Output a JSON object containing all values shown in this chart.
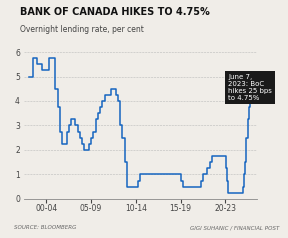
{
  "title": "BANK OF CANADA HIKES TO 4.75%",
  "subtitle": "Overnight lending rate, per cent",
  "source_left": "SOURCE: BLOOMBERG",
  "source_right": "GIGI SUHANIC / FINANCIAL POST",
  "line_color": "#1565c0",
  "background_color": "#f0ede8",
  "annotation_bg": "#1a1a1a",
  "annotation_text": "June 7,\n2023: BoC\nhikes 25 bps\nto 4.75%",
  "ylim": [
    0,
    6.2
  ],
  "yticks": [
    0,
    1,
    2,
    3,
    4,
    5,
    6
  ],
  "xtick_labels": [
    "00-04",
    "05-09",
    "10-14",
    "15-19",
    "20-23"
  ],
  "xtick_positions": [
    2,
    7,
    12,
    17,
    22
  ],
  "series": [
    [
      1998,
      5.0
    ],
    [
      1998.5,
      5.75
    ],
    [
      1999,
      5.5
    ],
    [
      1999.5,
      5.25
    ],
    [
      2000,
      5.25
    ],
    [
      2000.25,
      5.75
    ],
    [
      2000.5,
      5.75
    ],
    [
      2001,
      4.5
    ],
    [
      2001.25,
      3.75
    ],
    [
      2001.5,
      2.75
    ],
    [
      2001.75,
      2.25
    ],
    [
      2002,
      2.25
    ],
    [
      2002.25,
      2.75
    ],
    [
      2002.5,
      3.0
    ],
    [
      2002.75,
      3.25
    ],
    [
      2003,
      3.25
    ],
    [
      2003.25,
      3.0
    ],
    [
      2003.5,
      2.75
    ],
    [
      2003.75,
      2.5
    ],
    [
      2004,
      2.25
    ],
    [
      2004.25,
      2.0
    ],
    [
      2004.5,
      2.0
    ],
    [
      2004.75,
      2.25
    ],
    [
      2005,
      2.5
    ],
    [
      2005.25,
      2.75
    ],
    [
      2005.5,
      3.25
    ],
    [
      2005.75,
      3.5
    ],
    [
      2006,
      3.75
    ],
    [
      2006.25,
      4.0
    ],
    [
      2006.5,
      4.25
    ],
    [
      2006.75,
      4.25
    ],
    [
      2007,
      4.25
    ],
    [
      2007.25,
      4.5
    ],
    [
      2007.5,
      4.5
    ],
    [
      2007.75,
      4.25
    ],
    [
      2008,
      4.0
    ],
    [
      2008.25,
      3.0
    ],
    [
      2008.5,
      2.5
    ],
    [
      2008.75,
      1.5
    ],
    [
      2009,
      0.5
    ],
    [
      2009.5,
      0.5
    ],
    [
      2010,
      0.5
    ],
    [
      2010.25,
      0.75
    ],
    [
      2010.5,
      1.0
    ],
    [
      2011,
      1.0
    ],
    [
      2012,
      1.0
    ],
    [
      2013,
      1.0
    ],
    [
      2014,
      1.0
    ],
    [
      2014.75,
      1.0
    ],
    [
      2015,
      0.75
    ],
    [
      2015.25,
      0.5
    ],
    [
      2016,
      0.5
    ],
    [
      2017,
      0.5
    ],
    [
      2017.25,
      0.75
    ],
    [
      2017.5,
      1.0
    ],
    [
      2018,
      1.25
    ],
    [
      2018.25,
      1.5
    ],
    [
      2018.5,
      1.75
    ],
    [
      2019,
      1.75
    ],
    [
      2020,
      1.75
    ],
    [
      2020.08,
      1.25
    ],
    [
      2020.16,
      0.75
    ],
    [
      2020.25,
      0.25
    ],
    [
      2021,
      0.25
    ],
    [
      2021.75,
      0.25
    ],
    [
      2022,
      0.5
    ],
    [
      2022.08,
      1.0
    ],
    [
      2022.17,
      1.5
    ],
    [
      2022.33,
      2.5
    ],
    [
      2022.5,
      3.25
    ],
    [
      2022.6,
      3.75
    ],
    [
      2022.75,
      4.0
    ],
    [
      2022.83,
      4.25
    ],
    [
      2023.0,
      4.5
    ],
    [
      2023.42,
      4.75
    ]
  ]
}
